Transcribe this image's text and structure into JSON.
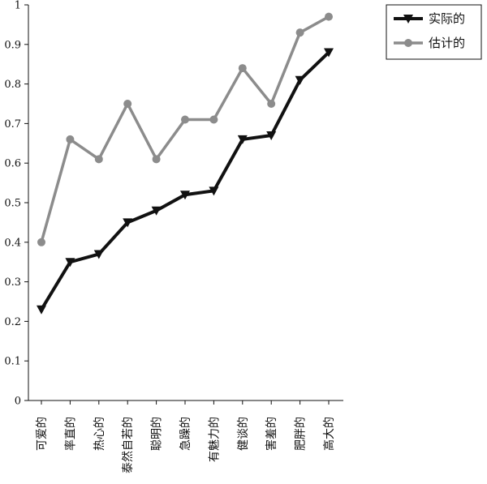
{
  "chart_data": {
    "type": "line",
    "categories": [
      "可爱的",
      "率直的",
      "热心的",
      "泰然自若的",
      "聪明的",
      "急躁的",
      "有魅力的",
      "健谈的",
      "害羞的",
      "肥胖的",
      "高大的"
    ],
    "series": [
      {
        "name": "实际的",
        "color": "#111111",
        "marker": "triangle-down",
        "values": [
          0.23,
          0.35,
          0.37,
          0.45,
          0.48,
          0.52,
          0.53,
          0.66,
          0.67,
          0.81,
          0.88
        ]
      },
      {
        "name": "估计的",
        "color": "#8c8c8c",
        "marker": "circle",
        "values": [
          0.4,
          0.66,
          0.61,
          0.75,
          0.61,
          0.71,
          0.71,
          0.84,
          0.75,
          0.93,
          0.97
        ]
      }
    ],
    "yticks": [
      "0",
      "0.1",
      "0.2",
      "0.3",
      "0.4",
      "0.5",
      "0.6",
      "0.7",
      "0.8",
      "0.9",
      "1"
    ],
    "ylim": [
      0,
      1
    ],
    "grid": false,
    "legend": "top-right",
    "xlabel": "",
    "ylabel": "",
    "title": ""
  }
}
